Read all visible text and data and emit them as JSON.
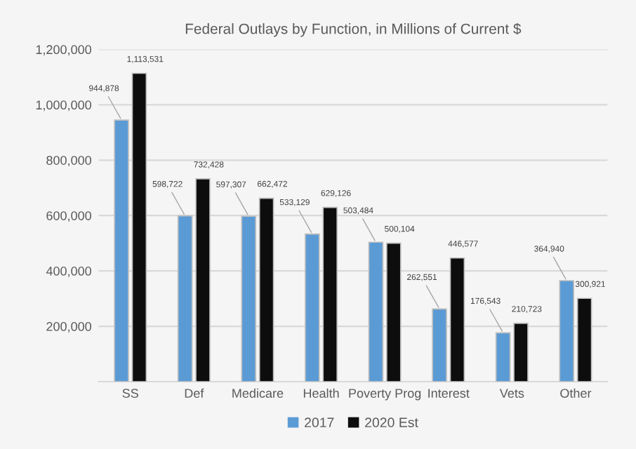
{
  "chart_data": {
    "type": "bar",
    "title": "Federal Outlays by Function, in Millions of Current $",
    "categories": [
      "SS",
      "Def",
      "Medicare",
      "Health",
      "Poverty Prog",
      "Interest",
      "Vets",
      "Other"
    ],
    "series": [
      {
        "name": "2017",
        "color": "#5b9bd5",
        "values": [
          944878,
          598722,
          597307,
          533129,
          503484,
          262551,
          176543,
          364940
        ],
        "value_labels": [
          "944,878",
          "598,722",
          "597,307",
          "533,129",
          "503,484",
          "262,551",
          "176,543",
          "364,940"
        ]
      },
      {
        "name": "2020 Est",
        "color": "#0d0d0d",
        "values": [
          1113531,
          732428,
          662472,
          629126,
          500104,
          446577,
          210723,
          300921
        ],
        "value_labels": [
          "1,113,531",
          "732,428",
          "662,472",
          "629,126",
          "500,104",
          "446,577",
          "210,723",
          "300,921"
        ]
      }
    ],
    "ylim": [
      0,
      1200000
    ],
    "yticks": [
      {
        "value": 0,
        "label": null
      },
      {
        "value": 200000,
        "label": "200,000"
      },
      {
        "value": 400000,
        "label": "400,000"
      },
      {
        "value": 600000,
        "label": "600,000"
      },
      {
        "value": 800000,
        "label": "800,000"
      },
      {
        "value": 1000000,
        "label": "1,000,000"
      },
      {
        "value": 1200000,
        "label": "1,200,000"
      }
    ],
    "grid": "y",
    "legend": "bottom"
  }
}
